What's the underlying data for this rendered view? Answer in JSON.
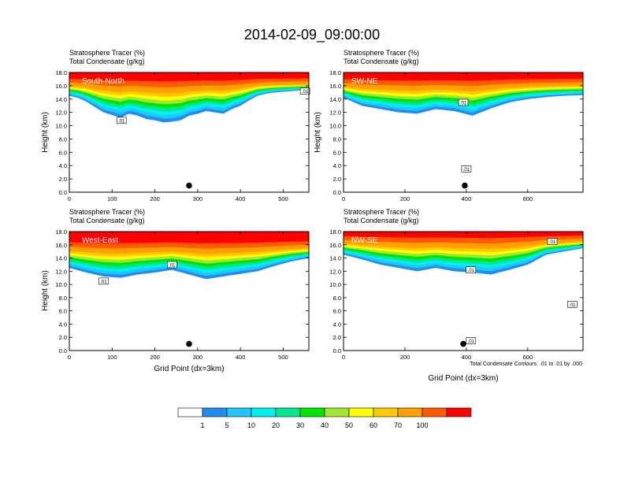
{
  "title": "2014-02-09_09:00:00",
  "colors": [
    "#ffffff",
    "#1e8cf0",
    "#1ec8ff",
    "#00f0f0",
    "#00e68c",
    "#00e600",
    "#a0e632",
    "#ffff00",
    "#ffc800",
    "#ffa000",
    "#ff5a00",
    "#ff0000"
  ],
  "colorbar": {
    "labels": [
      "1",
      "5",
      "10",
      "20",
      "30",
      "40",
      "50",
      "60",
      "70",
      "100"
    ]
  },
  "footnote": "Total Condensate Contours: .01 to .01 by .000",
  "chart_data": [
    {
      "type": "heatmap",
      "header_line1": "Stratosphere Tracer   (%)",
      "header_line2": "Total Condensate   (g/kg)",
      "section_label": "South-North",
      "ylabel": "Height (km)",
      "xlabel": "",
      "xlim": [
        0,
        560
      ],
      "ylim": [
        0,
        18
      ],
      "x_ticks": [
        0,
        100,
        200,
        300,
        400,
        500
      ],
      "y_ticks": [
        "0.0",
        "2.0",
        "4.0",
        "6.0",
        "8.0",
        "10.0",
        "12.0",
        "14.0",
        "16.0",
        "18.0"
      ],
      "contour_labels": [
        {
          "text": ".01",
          "x": 122,
          "y": 10.8
        },
        {
          "text": ".01",
          "x": 551,
          "y": 15.2
        }
      ],
      "marker": {
        "x": 280,
        "y": 1.0
      },
      "profile": {
        "x": [
          0,
          20,
          40,
          60,
          80,
          100,
          120,
          140,
          160,
          180,
          200,
          220,
          240,
          260,
          280,
          300,
          320,
          340,
          360,
          380,
          400,
          420,
          440,
          460,
          480,
          500,
          520,
          540,
          560
        ],
        "bottom": [
          14.5,
          14.2,
          13.6,
          12.8,
          12.0,
          11.6,
          11.2,
          11.8,
          11.5,
          11.0,
          10.8,
          10.5,
          10.6,
          10.8,
          11.5,
          11.8,
          12.2,
          12.0,
          11.8,
          12.5,
          13.0,
          13.8,
          14.5,
          14.8,
          15.0,
          15.1,
          15.2,
          15.3,
          15.4
        ],
        "base_top": 16.5
      }
    },
    {
      "type": "heatmap",
      "header_line1": "Stratosphere Tracer   (%)",
      "header_line2": "Total Condensate   (g/kg)",
      "section_label": "SW-NE",
      "ylabel": "Height (km)",
      "xlabel": "",
      "xlim": [
        0,
        780
      ],
      "ylim": [
        0,
        18
      ],
      "x_ticks": [
        0,
        200,
        400,
        600
      ],
      "y_ticks": [
        "0.0",
        "2.0",
        "4.0",
        "6.0",
        "8.0",
        "10.0",
        "12.0",
        "14.0",
        "16.0",
        "18.0"
      ],
      "contour_labels": [
        {
          "text": ".01",
          "x": 390,
          "y": 13.5
        },
        {
          "text": ".01",
          "x": 400,
          "y": 3.5
        }
      ],
      "marker": {
        "x": 395,
        "y": 1.0
      },
      "profile": {
        "x": [
          0,
          60,
          120,
          180,
          240,
          300,
          360,
          420,
          480,
          540,
          600,
          660,
          720,
          780
        ],
        "bottom": [
          14.2,
          13.0,
          12.5,
          12.0,
          11.8,
          12.5,
          12.2,
          11.5,
          12.6,
          13.5,
          14.0,
          14.3,
          14.5,
          14.6
        ],
        "base_top": 16.5
      }
    },
    {
      "type": "heatmap",
      "header_line1": "Stratosphere Tracer   (%)",
      "header_line2": "Total Condensate   (g/kg)",
      "section_label": "West-East",
      "ylabel": "Height (km)",
      "xlabel": "Grid Point (dx=3km)",
      "xlim": [
        0,
        560
      ],
      "ylim": [
        0,
        18
      ],
      "x_ticks": [
        0,
        100,
        200,
        300,
        400,
        500
      ],
      "y_ticks": [
        "0.0",
        "2.0",
        "4.0",
        "6.0",
        "8.0",
        "10.0",
        "12.0",
        "14.0",
        "16.0",
        "18.0"
      ],
      "contour_labels": [
        {
          "text": ".01",
          "x": 80,
          "y": 10.5
        },
        {
          "text": ".01",
          "x": 240,
          "y": 13.0
        }
      ],
      "marker": {
        "x": 280,
        "y": 1.0
      },
      "profile": {
        "x": [
          0,
          40,
          80,
          120,
          160,
          200,
          240,
          280,
          320,
          360,
          400,
          440,
          480,
          520,
          560
        ],
        "bottom": [
          12.5,
          11.8,
          11.2,
          11.0,
          11.5,
          11.8,
          12.2,
          11.5,
          10.8,
          11.2,
          11.6,
          12.0,
          12.8,
          13.5,
          14.0
        ],
        "base_top": 16.0
      }
    },
    {
      "type": "heatmap",
      "header_line1": "Stratosphere Tracer   (%)",
      "header_line2": "Total Condensate   (g/kg)",
      "section_label": "NW-SE",
      "ylabel": "",
      "xlabel": "Grid Point (dx=3km)",
      "xlim": [
        0,
        780
      ],
      "ylim": [
        0,
        18
      ],
      "x_ticks": [
        0,
        200,
        400,
        600
      ],
      "y_ticks": [
        "0.0",
        "2.0",
        "4.0",
        "6.0",
        "8.0",
        "10.0",
        "12.0",
        "14.0",
        "16.0",
        "18.0"
      ],
      "contour_labels": [
        {
          "text": ".01",
          "x": 415,
          "y": 12.2
        },
        {
          "text": ".01",
          "x": 680,
          "y": 16.5
        },
        {
          "text": ".01",
          "x": 745,
          "y": 7.0
        },
        {
          "text": ".01",
          "x": 415,
          "y": 1.5
        }
      ],
      "marker": {
        "x": 390,
        "y": 1.0
      },
      "profile": {
        "x": [
          0,
          60,
          120,
          180,
          240,
          300,
          360,
          420,
          480,
          540,
          600,
          660,
          720,
          780
        ],
        "bottom": [
          14.5,
          13.8,
          13.0,
          12.5,
          12.0,
          12.5,
          12.0,
          11.8,
          11.5,
          12.2,
          13.0,
          14.5,
          15.0,
          15.5
        ],
        "base_top": 16.8
      }
    }
  ]
}
